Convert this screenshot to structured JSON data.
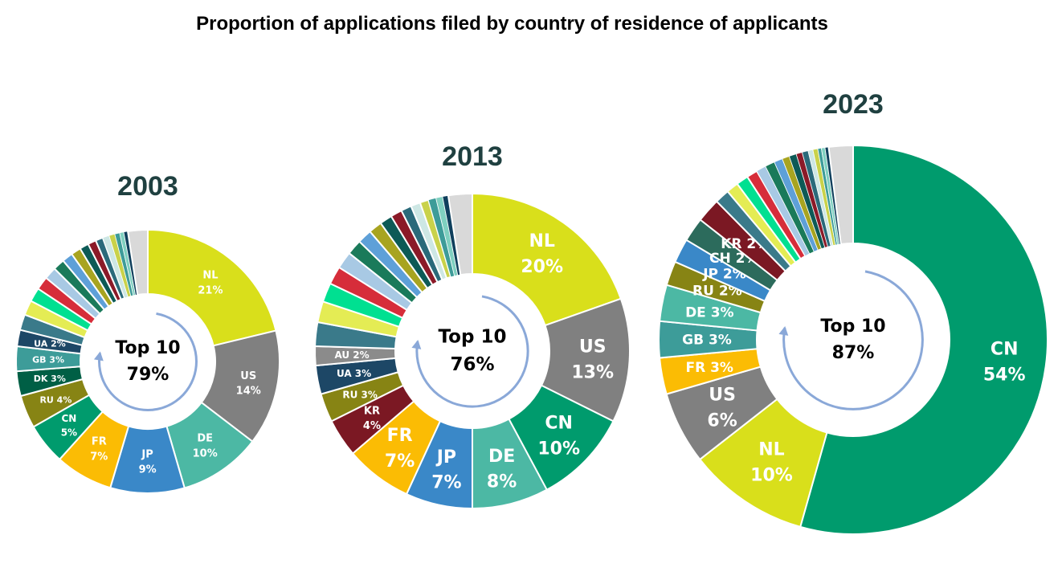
{
  "title": "Proportion of applications filed by country of residence of applicants",
  "colors": {
    "NL": "#d9df1b",
    "US": "#808080",
    "DE": "#4cb8a4",
    "JP": "#3a88c8",
    "FR": "#fbbc04",
    "CN": "#009b6d",
    "RU": "#878414",
    "DK": "#005f45",
    "GB": "#3d9c99",
    "UA": "#1d4766",
    "KR": "#7b1823",
    "AU": "#8b8b8b",
    "CH": "#2c6b5c",
    "background": "#ffffff",
    "ring_border": "#ffffff",
    "arrow": "#8aa8d8",
    "year_text": "#1f4040"
  },
  "small_slice_palette": [
    "#3a7a8a",
    "#e4ec54",
    "#00e091",
    "#d62d3a",
    "#a8c9e4",
    "#1a7a5a",
    "#5ea0d8",
    "#a8a420",
    "#0d5a56",
    "#8b1a28",
    "#2a6a7a",
    "#cde7e4",
    "#c9d24a",
    "#3d9c99",
    "#7fd0c0",
    "#0f3f5c"
  ],
  "chart_data": [
    {
      "type": "pie",
      "variant": "donut",
      "year": "2003",
      "center_label": "Top 10",
      "center_value": "79%",
      "slices": [
        {
          "code": "NL",
          "value": 21,
          "label": "NL",
          "pct": "21%"
        },
        {
          "code": "US",
          "value": 14,
          "label": "US",
          "pct": "14%"
        },
        {
          "code": "DE",
          "value": 10,
          "label": "DE",
          "pct": "10%"
        },
        {
          "code": "JP",
          "value": 9,
          "label": "JP",
          "pct": "9%"
        },
        {
          "code": "FR",
          "value": 7,
          "label": "FR",
          "pct": "7%"
        },
        {
          "code": "CN",
          "value": 5,
          "label": "CN",
          "pct": "5%"
        },
        {
          "code": "RU",
          "value": 4,
          "label": "RU 4%"
        },
        {
          "code": "DK",
          "value": 3,
          "label": "DK 3%"
        },
        {
          "code": "GB",
          "value": 3,
          "label": "GB 3%"
        },
        {
          "code": "UA",
          "value": 2,
          "label": "UA 2%"
        }
      ],
      "small_slices": [
        1.9,
        1.8,
        1.7,
        1.6,
        1.5,
        1.4,
        1.3,
        1.2,
        1.1,
        1.0,
        0.9,
        0.8,
        0.7,
        0.6,
        0.5,
        0.5
      ],
      "other_grey": 2.4
    },
    {
      "type": "pie",
      "variant": "donut",
      "year": "2013",
      "center_label": "Top 10",
      "center_value": "76%",
      "slices": [
        {
          "code": "NL",
          "value": 20,
          "label": "NL",
          "pct": "20%"
        },
        {
          "code": "US",
          "value": 13,
          "label": "US",
          "pct": "13%"
        },
        {
          "code": "CN",
          "value": 10,
          "label": "CN",
          "pct": "10%"
        },
        {
          "code": "DE",
          "value": 8,
          "label": "DE",
          "pct": "8%"
        },
        {
          "code": "JP",
          "value": 7,
          "label": "JP",
          "pct": "7%"
        },
        {
          "code": "FR",
          "value": 7,
          "label": "FR",
          "pct": "7%"
        },
        {
          "code": "KR",
          "value": 4,
          "label": "KR",
          "pct": "4%"
        },
        {
          "code": "RU",
          "value": 3,
          "label": "RU 3%"
        },
        {
          "code": "UA",
          "value": 3,
          "label": "UA 3%"
        },
        {
          "code": "AU",
          "value": 2,
          "label": "AU 2%"
        }
      ],
      "small_slices": [
        2.5,
        2.2,
        2.0,
        1.9,
        1.8,
        1.6,
        1.5,
        1.4,
        1.3,
        1.2,
        1.1,
        1.0,
        0.9,
        0.8,
        0.7,
        0.6
      ],
      "other_grey": 2.5
    },
    {
      "type": "pie",
      "variant": "donut",
      "year": "2023",
      "center_label": "Top 10",
      "center_value": "87%",
      "slices": [
        {
          "code": "CN",
          "value": 54,
          "label": "CN",
          "pct": "54%"
        },
        {
          "code": "NL",
          "value": 10,
          "label": "NL",
          "pct": "10%"
        },
        {
          "code": "US",
          "value": 6,
          "label": "US",
          "pct": "6%"
        },
        {
          "code": "FR",
          "value": 3,
          "label": "FR 3%"
        },
        {
          "code": "GB",
          "value": 3,
          "label": "GB 3%"
        },
        {
          "code": "DE",
          "value": 3,
          "label": "DE 3%"
        },
        {
          "code": "RU",
          "value": 2,
          "label": "RU 2%"
        },
        {
          "code": "JP",
          "value": 2,
          "label": "JP 2%"
        },
        {
          "code": "CH",
          "value": 2,
          "label": "CH 2%"
        },
        {
          "code": "KR",
          "value": 2,
          "label": "KR 2%"
        }
      ],
      "small_slices": [
        1.2,
        1.0,
        1.0,
        0.9,
        0.8,
        0.8,
        0.7,
        0.6,
        0.6,
        0.5,
        0.5,
        0.4,
        0.4,
        0.3,
        0.3,
        0.3
      ],
      "other_grey": 2.0
    }
  ]
}
